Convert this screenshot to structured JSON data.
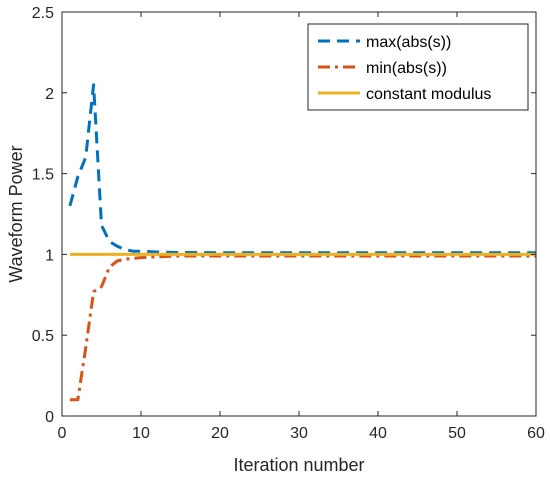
{
  "chart_data": {
    "type": "line",
    "title": "",
    "xlabel": "Iteration number",
    "ylabel": "Waveform Power",
    "xlim": [
      0,
      60
    ],
    "ylim": [
      0,
      2.5
    ],
    "xticks": [
      0,
      10,
      20,
      30,
      40,
      50,
      60
    ],
    "yticks": [
      0,
      0.5,
      1,
      1.5,
      2,
      2.5
    ],
    "xtick_labels": [
      "0",
      "10",
      "20",
      "30",
      "40",
      "50",
      "60"
    ],
    "ytick_labels": [
      "0",
      "0.5",
      "1",
      "1.5",
      "2",
      "2.5"
    ],
    "grid": false,
    "legend": "top-right",
    "series": [
      {
        "name": "max(abs(s))",
        "color": "#0072BD",
        "style": "dashed",
        "x": [
          1,
          2,
          3,
          4,
          5,
          6,
          7,
          8,
          9,
          10,
          12,
          15,
          20,
          30,
          40,
          50,
          60
        ],
        "y": [
          1.3,
          1.48,
          1.6,
          2.05,
          1.18,
          1.08,
          1.05,
          1.03,
          1.02,
          1.02,
          1.015,
          1.012,
          1.01,
          1.01,
          1.01,
          1.01,
          1.01
        ]
      },
      {
        "name": "min(abs(s))",
        "color": "#D95319",
        "style": "dashdot",
        "x": [
          1,
          2,
          3,
          4,
          5,
          6,
          7,
          8,
          9,
          10,
          12,
          15,
          20,
          30,
          40,
          50,
          60
        ],
        "y": [
          0.1,
          0.1,
          0.42,
          0.77,
          0.8,
          0.92,
          0.96,
          0.97,
          0.975,
          0.98,
          0.985,
          0.99,
          0.99,
          0.99,
          0.99,
          0.99,
          0.99
        ]
      },
      {
        "name": "constant modulus",
        "color": "#EDB120",
        "style": "solid",
        "x": [
          1,
          60
        ],
        "y": [
          1,
          1
        ]
      }
    ]
  }
}
